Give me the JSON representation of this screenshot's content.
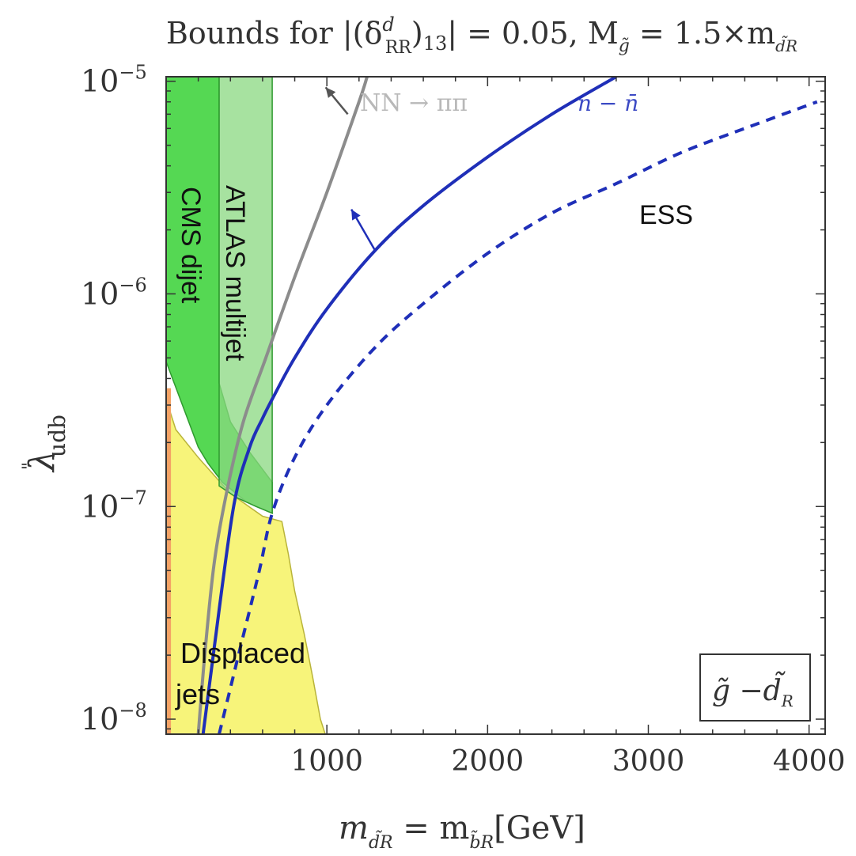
{
  "chart_data": {
    "type": "line",
    "title_lines": {
      "bounds_prefix": "Bounds for |(δ",
      "delta_sup": "d",
      "delta_sub": "RR",
      "close": ")",
      "index": "13",
      "value": "| = 0.05,  M",
      "mg_sub": "g̃",
      "ratio": " = 1.5×m",
      "md_sub": "d̃R"
    },
    "xlabel": {
      "m": "m",
      "sub1": "d̃R",
      "eq": " = m",
      "sub2": "b̃R",
      "unit": "[GeV]"
    },
    "ylabel": {
      "lambda": "λ",
      "dprime": "\"",
      "sub": "udb"
    },
    "x_scale": "linear",
    "y_scale": "log",
    "xlim": [
      0,
      4100
    ],
    "ylim": [
      8.5e-09,
      1.05e-05
    ],
    "xticks": [
      {
        "value": 1000,
        "label": "1000"
      },
      {
        "value": 2000,
        "label": "2000"
      },
      {
        "value": 3000,
        "label": "3000"
      },
      {
        "value": 4000,
        "label": "4000"
      }
    ],
    "yticks": [
      {
        "value": 1e-05,
        "base": "10",
        "exp": "−5"
      },
      {
        "value": 1e-06,
        "base": "10",
        "exp": "−6"
      },
      {
        "value": 1e-07,
        "base": "10",
        "exp": "−7"
      },
      {
        "value": 1e-08,
        "base": "10",
        "exp": "−8"
      }
    ],
    "grid": false,
    "colors": {
      "displaced": "#f7f47a",
      "cms": "#4cd64a",
      "atlas": "#8ad880",
      "orange": "#f4a366",
      "nnbar": "#1f2fb8",
      "nnpipi": "#8c8c8c",
      "nnbar_label": "#3c4ac4",
      "nnpipi_label": "#b8b8b8"
    },
    "regions": [
      {
        "name": "Displaced jets",
        "polygon": [
          [
            0,
            8.5e-09
          ],
          [
            0,
            3.2e-07
          ],
          [
            60,
            2.3e-07
          ],
          [
            200,
            1.7e-07
          ],
          [
            400,
            1.15e-07
          ],
          [
            600,
            9e-08
          ],
          [
            720,
            8.5e-08
          ],
          [
            760,
            6e-08
          ],
          [
            800,
            4e-08
          ],
          [
            860,
            2.5e-08
          ],
          [
            910,
            1.6e-08
          ],
          [
            960,
            1e-08
          ],
          [
            990,
            8.5e-09
          ]
        ]
      },
      {
        "name": "CMS dijet",
        "polygon": [
          [
            0,
            1.05e-05
          ],
          [
            330,
            1.05e-05
          ],
          [
            330,
            3.8e-07
          ],
          [
            400,
            2.5e-07
          ],
          [
            520,
            1.8e-07
          ],
          [
            660,
            1.3e-07
          ],
          [
            660,
            9.3e-08
          ],
          [
            500,
            1.05e-07
          ],
          [
            350,
            1.3e-07
          ],
          [
            260,
            1.6e-07
          ],
          [
            200,
            1.9e-07
          ],
          [
            0,
            4.8e-07
          ]
        ]
      },
      {
        "name": "ATLAS multijet",
        "polygon": [
          [
            330,
            1.05e-05
          ],
          [
            660,
            1.05e-05
          ],
          [
            660,
            9.3e-08
          ],
          [
            560,
            1e-07
          ],
          [
            440,
            1.1e-07
          ],
          [
            330,
            1.25e-07
          ]
        ]
      },
      {
        "name": "orange",
        "polygon": [
          [
            0,
            8.5e-09
          ],
          [
            0,
            3.6e-07
          ],
          [
            30,
            3.6e-07
          ],
          [
            30,
            8.5e-09
          ]
        ]
      }
    ],
    "series": [
      {
        "name": "n − n̄",
        "style": "solid",
        "x": [
          230,
          300,
          420,
          520,
          600,
          660,
          800,
          1000,
          1300,
          1600,
          2000,
          2400,
          2800
        ],
        "y": [
          8.5e-09,
          2.2e-08,
          1e-07,
          1.9e-07,
          2.6e-07,
          3.2e-07,
          5e-07,
          8.5e-07,
          1.6e-06,
          2.6e-06,
          4.4e-06,
          7e-06,
          1.05e-05
        ]
      },
      {
        "name": "ESS",
        "style": "dashed",
        "x": [
          330,
          450,
          580,
          660,
          800,
          1000,
          1300,
          1600,
          2000,
          2400,
          2800,
          3200,
          3600,
          4050
        ],
        "y": [
          8.5e-09,
          2e-08,
          5e-08,
          9.3e-08,
          1.7e-07,
          3e-07,
          5.6e-07,
          9e-07,
          1.55e-06,
          2.4e-06,
          3.3e-06,
          4.6e-06,
          6e-06,
          8e-06
        ]
      },
      {
        "name": "NN → ππ",
        "style": "solid-gray",
        "x": [
          200,
          240,
          300,
          380,
          480,
          620,
          800,
          1000,
          1200,
          1250
        ],
        "y": [
          8.5e-09,
          2e-08,
          5.5e-08,
          1.2e-07,
          2.5e-07,
          5e-07,
          1.2e-06,
          3e-06,
          8e-06,
          1.05e-05
        ]
      }
    ],
    "labels": {
      "cms": "CMS dijet",
      "atlas": "ATLAS multijet",
      "ess": "ESS",
      "displaced_1": "Displaced",
      "displaced_2": "jets",
      "nnbar": "n − n̄",
      "nnpipi": "NN → ππ"
    },
    "legend_box": {
      "g": "g̃",
      "dash": " −",
      "d": "d̃",
      "sub": "R"
    }
  }
}
